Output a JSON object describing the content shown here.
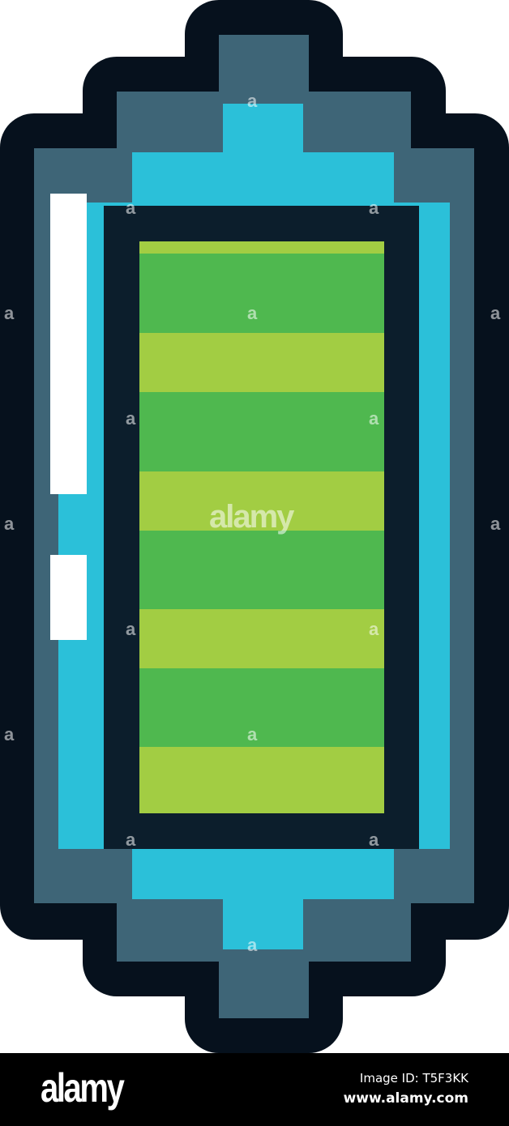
{
  "image": {
    "subject": "pixel-art battery icon",
    "charge_level": 1.0,
    "colors": {
      "outline": "#06111d",
      "shell": "#3e6577",
      "glow": "#2bc0d9",
      "inner": "#0c1e2c",
      "charge_green": "#4fb84f",
      "charge_lime": "#a2cd43",
      "highlight": "#ffffff"
    }
  },
  "watermark": {
    "center_text": "alamy",
    "tile_text": "a"
  },
  "footer": {
    "logo": "alamy",
    "image_id": "Image ID: T5F3KK",
    "url": "www.alamy.com"
  }
}
